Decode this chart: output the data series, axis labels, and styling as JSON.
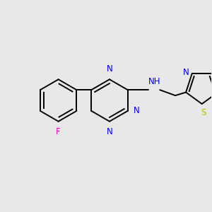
{
  "bg_color": "#e8e8e8",
  "bond_color": "#000000",
  "bond_width": 1.4,
  "atom_colors": {
    "N": "#0000ff",
    "F": "#ff00bb",
    "S": "#bbbb00",
    "H": "#555555",
    "C": "#000000"
  },
  "font_size": 8.5,
  "fig_size": [
    3.0,
    3.0
  ],
  "dpi": 100
}
